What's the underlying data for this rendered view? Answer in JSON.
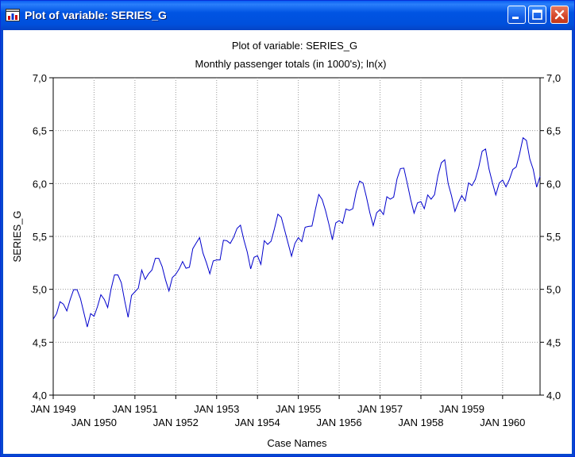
{
  "window": {
    "title": "Plot of variable: SERIES_G",
    "buttons": [
      "minimize",
      "maximize",
      "close"
    ]
  },
  "colors": {
    "line": "#0000cc",
    "grid": "#999999",
    "titlebar": "#0054e3"
  },
  "chart_data": {
    "type": "line",
    "title": "Plot of variable: SERIES_G",
    "subtitle": "Monthly passenger totals (in 1000's); ln(x)",
    "xlabel": "Case Names",
    "ylabel": "SERIES_G",
    "ylim": [
      4.0,
      7.0
    ],
    "yticks": [
      "4,0",
      "4,5",
      "5,0",
      "5,5",
      "6,0",
      "6,5",
      "7,0"
    ],
    "xticks": [
      {
        "label": "JAN 1949",
        "row": 0
      },
      {
        "label": "JAN 1950",
        "row": 1
      },
      {
        "label": "JAN 1951",
        "row": 0
      },
      {
        "label": "JAN 1952",
        "row": 1
      },
      {
        "label": "JAN 1953",
        "row": 0
      },
      {
        "label": "JAN 1954",
        "row": 1
      },
      {
        "label": "JAN 1955",
        "row": 0
      },
      {
        "label": "JAN 1956",
        "row": 1
      },
      {
        "label": "JAN 1957",
        "row": 0
      },
      {
        "label": "JAN 1958",
        "row": 1
      },
      {
        "label": "JAN 1959",
        "row": 0
      },
      {
        "label": "JAN 1960",
        "row": 1
      }
    ],
    "grid": true,
    "series": [
      {
        "values": [
          4.718,
          4.771,
          4.883,
          4.86,
          4.796,
          4.905,
          4.997,
          4.997,
          4.913,
          4.779,
          4.644,
          4.771,
          4.745,
          4.836,
          4.949,
          4.905,
          4.828,
          5.004,
          5.136,
          5.136,
          5.063,
          4.891,
          4.736,
          4.942,
          4.977,
          5.011,
          5.182,
          5.094,
          5.147,
          5.182,
          5.293,
          5.293,
          5.215,
          5.088,
          4.984,
          5.112,
          5.142,
          5.193,
          5.263,
          5.199,
          5.209,
          5.384,
          5.438,
          5.489,
          5.342,
          5.252,
          5.147,
          5.268,
          5.278,
          5.278,
          5.464,
          5.46,
          5.434,
          5.493,
          5.576,
          5.606,
          5.468,
          5.352,
          5.193,
          5.303,
          5.318,
          5.236,
          5.46,
          5.425,
          5.455,
          5.576,
          5.71,
          5.68,
          5.557,
          5.434,
          5.313,
          5.434,
          5.489,
          5.451,
          5.587,
          5.595,
          5.598,
          5.753,
          5.897,
          5.849,
          5.743,
          5.613,
          5.468,
          5.628,
          5.649,
          5.624,
          5.759,
          5.746,
          5.762,
          5.924,
          6.023,
          6.004,
          5.872,
          5.724,
          5.602,
          5.724,
          5.753,
          5.707,
          5.875,
          5.852,
          5.872,
          6.045,
          6.142,
          6.146,
          6.001,
          5.849,
          5.72,
          5.817,
          5.829,
          5.762,
          5.892,
          5.852,
          5.894,
          6.075,
          6.196,
          6.225,
          6.001,
          5.883,
          5.737,
          5.82,
          5.886,
          5.835,
          6.006,
          5.981,
          6.04,
          6.157,
          6.306,
          6.326,
          6.138,
          6.009,
          5.892,
          6.004,
          6.033,
          5.969,
          6.038,
          6.133,
          6.157,
          6.282,
          6.433,
          6.407,
          6.23,
          6.133,
          5.966,
          6.068
        ]
      }
    ]
  }
}
